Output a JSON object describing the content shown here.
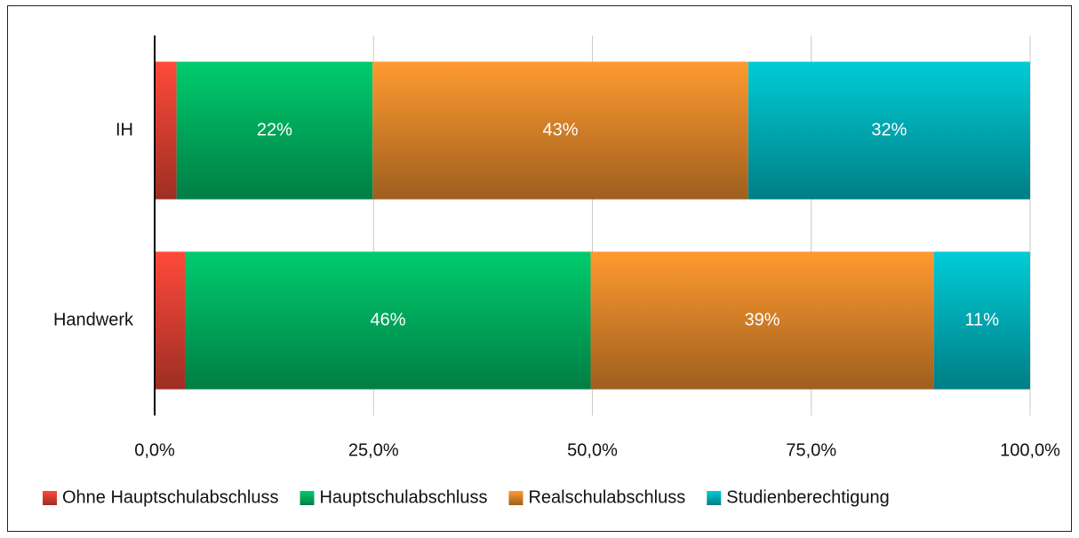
{
  "chart_data": {
    "type": "stacked_barh",
    "categories": [
      "IH",
      "Handwerk"
    ],
    "series": [
      {
        "name": "Ohne Hauptschulabschluss",
        "color": "#ff4a3a",
        "values": [
          2.5,
          3.5
        ]
      },
      {
        "name": "Hauptschulabschluss",
        "color": "#00cc6e",
        "values": [
          22.4,
          46.3
        ],
        "value_labels": [
          "22%",
          "46%"
        ]
      },
      {
        "name": "Realschulabschluss",
        "color": "#ff9a30",
        "values": [
          42.9,
          39.2
        ],
        "value_labels": [
          "43%",
          "39%"
        ]
      },
      {
        "name": "Studienberechtigung",
        "color": "#00ccd6",
        "values": [
          32.2,
          11.0
        ],
        "value_labels": [
          "32%",
          "11%"
        ]
      }
    ],
    "xlim": [
      0,
      100
    ],
    "xticks": [
      {
        "value": 0,
        "label": "0,0%"
      },
      {
        "value": 25,
        "label": "25,0%"
      },
      {
        "value": 50,
        "label": "50,0%"
      },
      {
        "value": 75,
        "label": "75,0%"
      },
      {
        "value": 100,
        "label": "100,0%"
      }
    ],
    "grid": true,
    "legend": "bottom"
  }
}
